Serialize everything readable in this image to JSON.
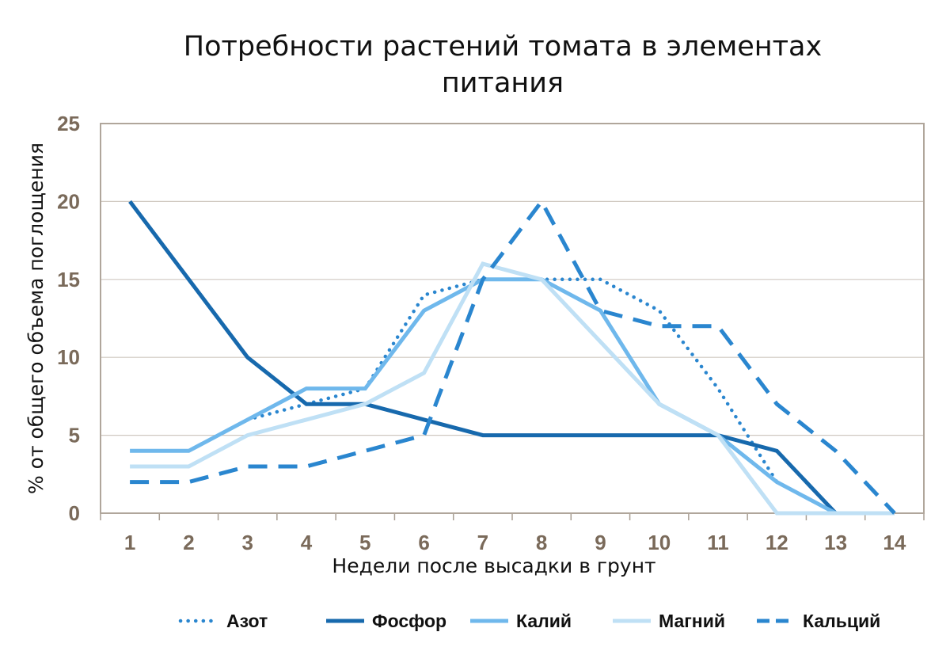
{
  "chart_data": {
    "type": "line",
    "title_lines": [
      "Потребности растений томата в элементах",
      "питания"
    ],
    "xlabel": "Недели после высадки в грунт",
    "ylabel": "% от общего объема поглощения",
    "x": [
      1,
      2,
      3,
      4,
      5,
      6,
      7,
      8,
      9,
      10,
      11,
      12,
      13,
      14
    ],
    "ylim": [
      0,
      25
    ],
    "yticks": [
      0,
      5,
      10,
      15,
      20,
      25
    ],
    "grid": true,
    "legend_position": "bottom",
    "series": [
      {
        "name": "Азот",
        "style": "dotted",
        "color": "#2a86cf",
        "values": [
          null,
          null,
          6,
          7,
          8,
          14,
          15,
          15,
          15,
          13,
          8,
          2,
          null,
          null
        ]
      },
      {
        "name": "Фосфор",
        "style": "solid",
        "color": "#1769ad",
        "values": [
          20,
          15,
          10,
          7,
          7,
          6,
          5,
          5,
          5,
          5,
          5,
          4,
          0,
          0
        ]
      },
      {
        "name": "Калий",
        "style": "solid",
        "color": "#6fb8ec",
        "values": [
          4,
          4,
          6,
          8,
          8,
          13,
          15,
          15,
          13,
          7,
          5,
          2,
          0,
          0
        ]
      },
      {
        "name": "Магний",
        "style": "solid",
        "color": "#bfe0f5",
        "values": [
          3,
          3,
          5,
          6,
          7,
          9,
          16,
          15,
          11,
          7,
          5,
          0,
          0,
          0
        ]
      },
      {
        "name": "Кальций",
        "style": "dashed",
        "color": "#2a86cf",
        "values": [
          2,
          2,
          3,
          3,
          4,
          5,
          15,
          20,
          13,
          12,
          12,
          7,
          4,
          0
        ]
      }
    ]
  }
}
